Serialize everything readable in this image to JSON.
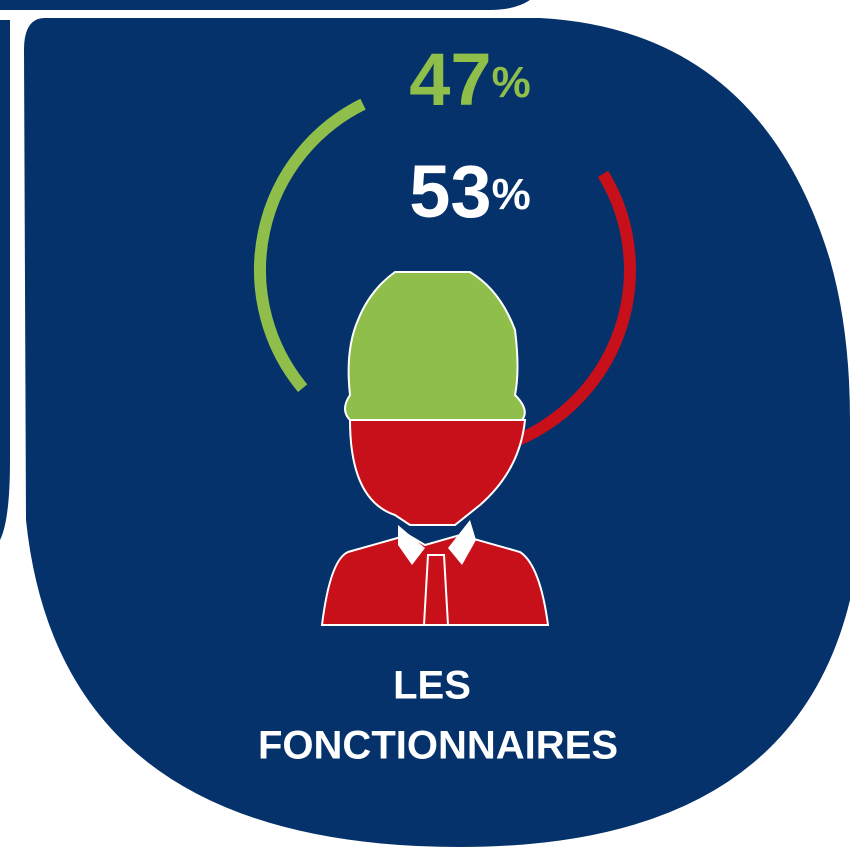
{
  "chart_data": {
    "type": "gauge",
    "title": [
      "LES",
      "FONCTIONNAIRES"
    ],
    "series": [
      {
        "color": "#8fbf4a",
        "values": [
          47
        ],
        "value_labels": [
          "47%"
        ]
      },
      {
        "color": "#c8101a",
        "values": [
          53
        ],
        "value_labels": [
          "53%"
        ]
      }
    ],
    "label_colors": [
      "#8fbf4a",
      "#ffffff"
    ],
    "background": "#05326b"
  }
}
